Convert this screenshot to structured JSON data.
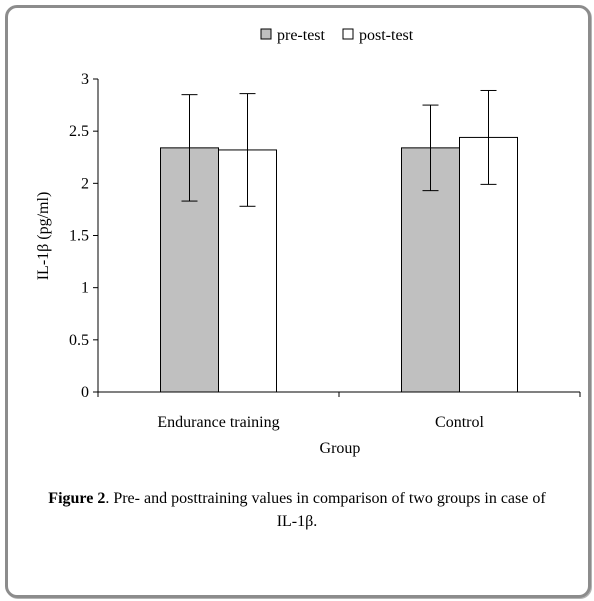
{
  "chart_data": {
    "type": "bar",
    "categories": [
      "Endurance training",
      "Control"
    ],
    "series": [
      {
        "name": "pre-test",
        "values": [
          2.34,
          2.34
        ],
        "errors": [
          0.51,
          0.41
        ],
        "color": "#c0c0c0"
      },
      {
        "name": "post-test",
        "values": [
          2.32,
          2.44
        ],
        "errors": [
          0.54,
          0.45
        ],
        "color": "#ffffff"
      }
    ],
    "xlabel": "Group",
    "ylabel": "IL-1β (pg/ml)",
    "ylim": [
      0,
      3
    ],
    "yticks": [
      "0",
      "0.5",
      "1",
      "1.5",
      "2",
      "2.5",
      "3"
    ],
    "grid": false,
    "legend_position": "top"
  },
  "caption": {
    "label": "Figure 2",
    "text": ". Pre- and posttraining values in comparison of two groups in case of IL-1β."
  }
}
